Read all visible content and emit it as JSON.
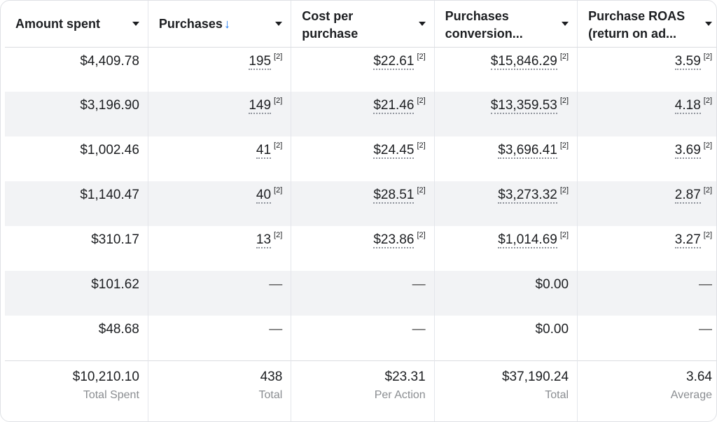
{
  "columns": [
    {
      "label": "Amount spent"
    },
    {
      "label": "Purchases",
      "sort_indicator": "↓"
    },
    {
      "label_line1": "Cost per",
      "label_line2": "purchase"
    },
    {
      "label_line1": "Purchases",
      "label_line2": "conversion..."
    },
    {
      "label_line1": "Purchase ROAS",
      "label_line2": "(return on ad..."
    }
  ],
  "note_marker": "[2]",
  "rows": [
    {
      "amount_spent": "$4,409.78",
      "purchases": "195",
      "cost_per_purchase": "$22.61",
      "conversion_value": "$15,846.29",
      "roas": "3.59"
    },
    {
      "amount_spent": "$3,196.90",
      "purchases": "149",
      "cost_per_purchase": "$21.46",
      "conversion_value": "$13,359.53",
      "roas": "4.18"
    },
    {
      "amount_spent": "$1,002.46",
      "purchases": "41",
      "cost_per_purchase": "$24.45",
      "conversion_value": "$3,696.41",
      "roas": "3.69"
    },
    {
      "amount_spent": "$1,140.47",
      "purchases": "40",
      "cost_per_purchase": "$28.51",
      "conversion_value": "$3,273.32",
      "roas": "2.87"
    },
    {
      "amount_spent": "$310.17",
      "purchases": "13",
      "cost_per_purchase": "$23.86",
      "conversion_value": "$1,014.69",
      "roas": "3.27"
    },
    {
      "amount_spent": "$101.62",
      "purchases": "—",
      "cost_per_purchase": "—",
      "conversion_value": "$0.00",
      "roas": "—"
    },
    {
      "amount_spent": "$48.68",
      "purchases": "—",
      "cost_per_purchase": "—",
      "conversion_value": "$0.00",
      "roas": "—"
    }
  ],
  "totals": {
    "amount_spent": {
      "value": "$10,210.10",
      "label": "Total Spent"
    },
    "purchases": {
      "value": "438",
      "label": "Total"
    },
    "cost_per_purchase": {
      "value": "$23.31",
      "label": "Per Action"
    },
    "conversion_value": {
      "value": "$37,190.24",
      "label": "Total"
    },
    "roas": {
      "value": "3.64",
      "label": "Average"
    }
  },
  "colors": {
    "sort_arrow": "#1877f2",
    "alt_row": "#f2f3f5",
    "sub_label": "#8a8d91"
  }
}
